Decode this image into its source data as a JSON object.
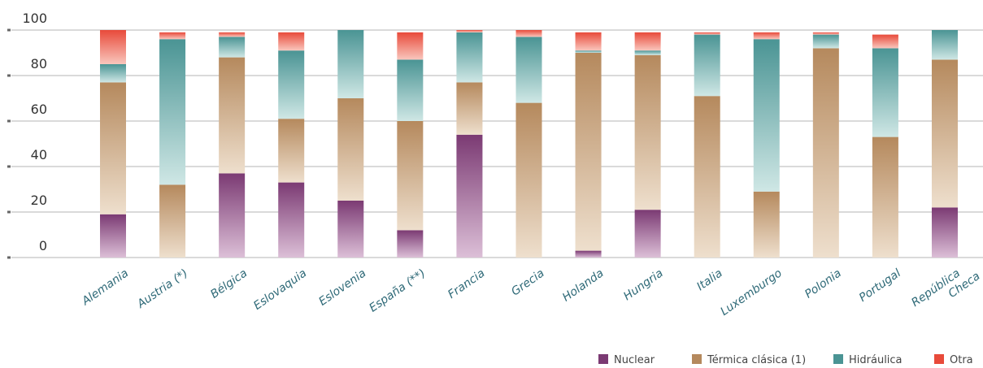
{
  "chart_data": {
    "type": "bar",
    "stacked": true,
    "categories": [
      "Alemania",
      "Austria (*)",
      "Bélgica",
      "Eslovaquia",
      "Eslovenia",
      "España (**)",
      "Francia",
      "Grecia",
      "Holanda",
      "Hungria",
      "Italia",
      "Luxemburgo",
      "Polonia",
      "Portugal",
      [
        "República",
        "Checa"
      ]
    ],
    "yticks": [
      "100",
      "80",
      "60",
      "40",
      "20",
      "0"
    ],
    "ylim": [
      0,
      100
    ],
    "grid": true,
    "legend_position": "bottom-right",
    "series": [
      {
        "name": "Nuclear",
        "color": "#7b3a73",
        "values": [
          19,
          0,
          37,
          33,
          25,
          12,
          54,
          0,
          3,
          21,
          0,
          0,
          0,
          0,
          22
        ]
      },
      {
        "name": "Térmica clásica (1)",
        "color": "#b5895d",
        "values": [
          58,
          32,
          51,
          28,
          45,
          48,
          23,
          68,
          87,
          68,
          71,
          29,
          92,
          53,
          65
        ]
      },
      {
        "name": "Hidráulica",
        "color": "#4a9494",
        "values": [
          8,
          64,
          9,
          30,
          30,
          27,
          22,
          29,
          1,
          2,
          27,
          67,
          6,
          39,
          13
        ]
      },
      {
        "name": "Otra",
        "color": "#e84a3a",
        "values": [
          15,
          3,
          2,
          8,
          0,
          12,
          1,
          3,
          8,
          8,
          1,
          3,
          1,
          6,
          0
        ]
      }
    ]
  }
}
